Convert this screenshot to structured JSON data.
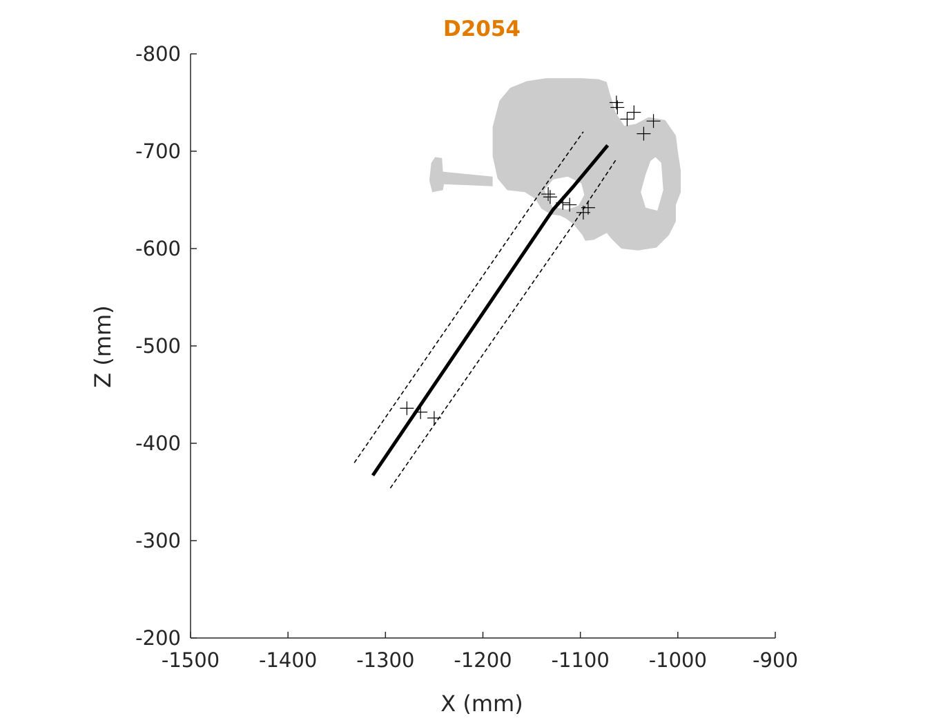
{
  "chart_data": {
    "type": "line",
    "title": "D2054",
    "title_color": "#e07b00",
    "xlabel": "X (mm)",
    "ylabel": "Z (mm)",
    "xlim": [
      -1500,
      -900
    ],
    "ylim": [
      -800,
      -200
    ],
    "y_direction": "reversed",
    "xticks": [
      -1500,
      -1400,
      -1300,
      -1200,
      -1100,
      -1000,
      -900
    ],
    "yticks": [
      -800,
      -700,
      -600,
      -500,
      -400,
      -300,
      -200
    ],
    "xtick_labels": [
      "-1500",
      "-1400",
      "-1300",
      "-1200",
      "-1100",
      "-1000",
      "-900"
    ],
    "ytick_labels": [
      "-800",
      "-700",
      "-600",
      "-500",
      "-400",
      "-300",
      "-200"
    ],
    "grid": false,
    "colors": {
      "bone": "#cccccc",
      "line": "#000000",
      "axis": "#262626"
    },
    "series": [
      {
        "style": "solid-thick",
        "x": [
          -1313,
          -1128,
          -1107,
          -1072
        ],
        "y": [
          -367,
          -640,
          -664,
          -706
        ]
      },
      {
        "style": "dashed",
        "x": [
          -1332,
          -1143,
          -1097
        ],
        "y": [
          -380,
          -655,
          -720
        ]
      },
      {
        "style": "dashed",
        "x": [
          -1295,
          -1108,
          -1063
        ],
        "y": [
          -354,
          -624,
          -692
        ]
      }
    ],
    "markers": {
      "symbol": "+",
      "x": [
        -1063,
        -1062,
        -1052,
        -1045,
        -1035,
        -1025,
        -1133,
        -1131,
        -1118,
        -1111,
        -1097,
        -1092,
        -1278,
        -1264,
        -1250
      ],
      "y": [
        -750,
        -745,
        -733,
        -740,
        -718,
        -731,
        -656,
        -653,
        -647,
        -645,
        -637,
        -642,
        -436,
        -432,
        -426
      ]
    },
    "bone_outline": {
      "x": [
        -1098,
        -1081,
        -1073,
        -1070,
        -1064,
        -1055,
        -1043,
        -1030,
        -1013,
        -1002,
        -1000,
        -997,
        -997,
        -1002,
        -1002,
        -1009,
        -1022,
        -1041,
        -1058,
        -1068,
        -1073,
        -1086,
        -1095,
        -1098,
        -1107,
        -1115,
        -1121,
        -1130,
        -1140,
        -1146,
        -1157,
        -1175,
        -1185,
        -1190,
        -1190,
        -1183,
        -1172,
        -1155,
        -1135,
        -1110,
        -1098
      ],
      "y": [
        -775,
        -774,
        -771,
        -760,
        -740,
        -726,
        -728,
        -735,
        -732,
        -716,
        -700,
        -680,
        -658,
        -645,
        -628,
        -614,
        -601,
        -598,
        -600,
        -610,
        -616,
        -609,
        -608,
        -614,
        -625,
        -631,
        -634,
        -635,
        -641,
        -651,
        -658,
        -660,
        -672,
        -695,
        -725,
        -752,
        -765,
        -772,
        -775,
        -775,
        -775
      ]
    },
    "bone_hole_1": {
      "x": [
        -1137,
        -1128,
        -1113,
        -1099,
        -1096,
        -1102,
        -1114,
        -1129,
        -1137
      ],
      "y": [
        -660,
        -671,
        -674,
        -667,
        -655,
        -644,
        -640,
        -643,
        -660
      ]
    },
    "bone_hole_2": {
      "x": [
        -1028,
        -1023,
        -1017,
        -1015,
        -1021,
        -1033,
        -1038,
        -1033,
        -1028
      ],
      "y": [
        -690,
        -694,
        -688,
        -660,
        -639,
        -642,
        -658,
        -676,
        -690
      ]
    },
    "bone_appendage": {
      "x": [
        -1190,
        -1212,
        -1240,
        -1241,
        -1252,
        -1255,
        -1253,
        -1249,
        -1242,
        -1241,
        -1212,
        -1190
      ],
      "y": [
        -664,
        -665,
        -666,
        -660,
        -658,
        -670,
        -688,
        -694,
        -693,
        -679,
        -676,
        -674
      ]
    }
  }
}
